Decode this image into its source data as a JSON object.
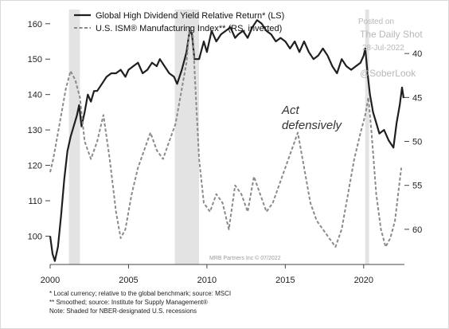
{
  "chart_data": {
    "type": "line",
    "x_range": [
      2000,
      2022.6
    ],
    "y_left_range": [
      92,
      164
    ],
    "y_right_range_inverted": [
      35,
      64
    ],
    "left_ticks": [
      100,
      110,
      120,
      130,
      140,
      150,
      160
    ],
    "right_ticks": [
      40,
      45,
      50,
      55,
      60
    ],
    "x_ticks": [
      "2000",
      "2005",
      "2010",
      "2015",
      "2020"
    ],
    "legend_placement": "top-left",
    "grid": false,
    "series": [
      {
        "name": "Global High Dividend Yield Relative Return* (LS)",
        "axis": "left",
        "style": "solid",
        "color": "#1f1f1f",
        "points": [
          [
            2000.0,
            100
          ],
          [
            2000.15,
            95
          ],
          [
            2000.3,
            93
          ],
          [
            2000.5,
            97
          ],
          [
            2000.7,
            106
          ],
          [
            2000.9,
            116
          ],
          [
            2001.1,
            124
          ],
          [
            2001.3,
            128
          ],
          [
            2001.5,
            131
          ],
          [
            2001.7,
            134
          ],
          [
            2001.85,
            137
          ],
          [
            2002.0,
            131
          ],
          [
            2002.2,
            135
          ],
          [
            2002.4,
            140
          ],
          [
            2002.6,
            138
          ],
          [
            2002.8,
            141
          ],
          [
            2003.0,
            141
          ],
          [
            2003.3,
            143
          ],
          [
            2003.6,
            145
          ],
          [
            2003.9,
            146
          ],
          [
            2004.2,
            146
          ],
          [
            2004.5,
            147
          ],
          [
            2004.8,
            145
          ],
          [
            2005.0,
            147
          ],
          [
            2005.3,
            148
          ],
          [
            2005.6,
            149
          ],
          [
            2005.9,
            146
          ],
          [
            2006.2,
            147
          ],
          [
            2006.5,
            149
          ],
          [
            2006.8,
            148
          ],
          [
            2007.0,
            150
          ],
          [
            2007.3,
            148
          ],
          [
            2007.6,
            146
          ],
          [
            2007.9,
            145
          ],
          [
            2008.1,
            143
          ],
          [
            2008.4,
            147
          ],
          [
            2008.7,
            152
          ],
          [
            2008.9,
            158
          ],
          [
            2009.05,
            157
          ],
          [
            2009.2,
            150
          ],
          [
            2009.5,
            150
          ],
          [
            2009.8,
            155
          ],
          [
            2010.0,
            152
          ],
          [
            2010.3,
            158
          ],
          [
            2010.6,
            155
          ],
          [
            2010.9,
            157
          ],
          [
            2011.2,
            158
          ],
          [
            2011.5,
            159
          ],
          [
            2011.8,
            156
          ],
          [
            2012.0,
            157
          ],
          [
            2012.3,
            158
          ],
          [
            2012.6,
            156
          ],
          [
            2012.9,
            159
          ],
          [
            2013.2,
            161
          ],
          [
            2013.5,
            160
          ],
          [
            2013.8,
            158
          ],
          [
            2014.1,
            157
          ],
          [
            2014.4,
            155
          ],
          [
            2014.7,
            156
          ],
          [
            2015.0,
            155
          ],
          [
            2015.3,
            153
          ],
          [
            2015.6,
            155
          ],
          [
            2015.9,
            152
          ],
          [
            2016.2,
            155
          ],
          [
            2016.5,
            152
          ],
          [
            2016.8,
            150
          ],
          [
            2017.1,
            151
          ],
          [
            2017.4,
            153
          ],
          [
            2017.7,
            151
          ],
          [
            2018.0,
            148
          ],
          [
            2018.3,
            146
          ],
          [
            2018.6,
            150
          ],
          [
            2018.9,
            148
          ],
          [
            2019.2,
            147
          ],
          [
            2019.5,
            148
          ],
          [
            2019.8,
            149
          ],
          [
            2020.0,
            151
          ],
          [
            2020.1,
            153
          ],
          [
            2020.25,
            146
          ],
          [
            2020.4,
            140
          ],
          [
            2020.6,
            135
          ],
          [
            2020.8,
            132
          ],
          [
            2021.0,
            129
          ],
          [
            2021.3,
            130
          ],
          [
            2021.6,
            127
          ],
          [
            2021.9,
            125
          ],
          [
            2022.1,
            132
          ],
          [
            2022.3,
            137
          ],
          [
            2022.45,
            142
          ],
          [
            2022.55,
            139
          ]
        ]
      },
      {
        "name": "U.S. ISM® Manufacturing Index** (RS, inverted)",
        "axis": "right",
        "style": "dashed",
        "color": "#8a8a8a",
        "points": [
          [
            2000.0,
            53.5
          ],
          [
            2000.2,
            52
          ],
          [
            2000.4,
            50
          ],
          [
            2000.7,
            47
          ],
          [
            2001.0,
            44
          ],
          [
            2001.3,
            42
          ],
          [
            2001.6,
            43
          ],
          [
            2001.9,
            45
          ],
          [
            2002.2,
            50
          ],
          [
            2002.6,
            52
          ],
          [
            2003.0,
            50
          ],
          [
            2003.4,
            47
          ],
          [
            2003.8,
            52
          ],
          [
            2004.2,
            58
          ],
          [
            2004.5,
            61
          ],
          [
            2004.8,
            60
          ],
          [
            2005.2,
            56
          ],
          [
            2005.6,
            53
          ],
          [
            2006.0,
            51
          ],
          [
            2006.4,
            49
          ],
          [
            2006.8,
            51
          ],
          [
            2007.2,
            52
          ],
          [
            2007.6,
            50
          ],
          [
            2008.0,
            48
          ],
          [
            2008.4,
            44
          ],
          [
            2008.7,
            41
          ],
          [
            2008.9,
            37
          ],
          [
            2009.1,
            38
          ],
          [
            2009.3,
            45
          ],
          [
            2009.5,
            52
          ],
          [
            2009.8,
            57
          ],
          [
            2010.2,
            58
          ],
          [
            2010.6,
            56
          ],
          [
            2011.0,
            57
          ],
          [
            2011.4,
            60
          ],
          [
            2011.8,
            55
          ],
          [
            2012.2,
            56
          ],
          [
            2012.6,
            58
          ],
          [
            2013.0,
            54
          ],
          [
            2013.4,
            56
          ],
          [
            2013.8,
            58
          ],
          [
            2014.2,
            57
          ],
          [
            2014.6,
            55
          ],
          [
            2015.0,
            53
          ],
          [
            2015.4,
            51
          ],
          [
            2015.8,
            49
          ],
          [
            2016.2,
            53
          ],
          [
            2016.6,
            57
          ],
          [
            2017.0,
            59
          ],
          [
            2017.4,
            60
          ],
          [
            2017.8,
            61
          ],
          [
            2018.2,
            62
          ],
          [
            2018.6,
            60
          ],
          [
            2019.0,
            56
          ],
          [
            2019.4,
            52
          ],
          [
            2019.8,
            49
          ],
          [
            2020.1,
            47
          ],
          [
            2020.3,
            45
          ],
          [
            2020.5,
            49
          ],
          [
            2020.8,
            56
          ],
          [
            2021.1,
            60
          ],
          [
            2021.4,
            62
          ],
          [
            2021.7,
            61
          ],
          [
            2022.0,
            59
          ],
          [
            2022.2,
            56
          ],
          [
            2022.4,
            53
          ]
        ]
      }
    ],
    "recessions": [
      [
        2001.2,
        2001.9
      ],
      [
        2007.95,
        2009.5
      ],
      [
        2020.1,
        2020.35
      ]
    ],
    "annotation": "Act\ndefensively",
    "watermark": {
      "posted": "Posted on",
      "site": "The Daily Shot",
      "date": "28-Jul-2022",
      "handle": "@SoberLook"
    },
    "source": "MRB Partners Inc © 07/2022",
    "notes": [
      "*   Local currency; relative to the global benchmark; source: MSCI",
      "** Smoothed; source: Institute for Supply Management®",
      "Note: Shaded for NBER-designated U.S. recessions"
    ]
  }
}
